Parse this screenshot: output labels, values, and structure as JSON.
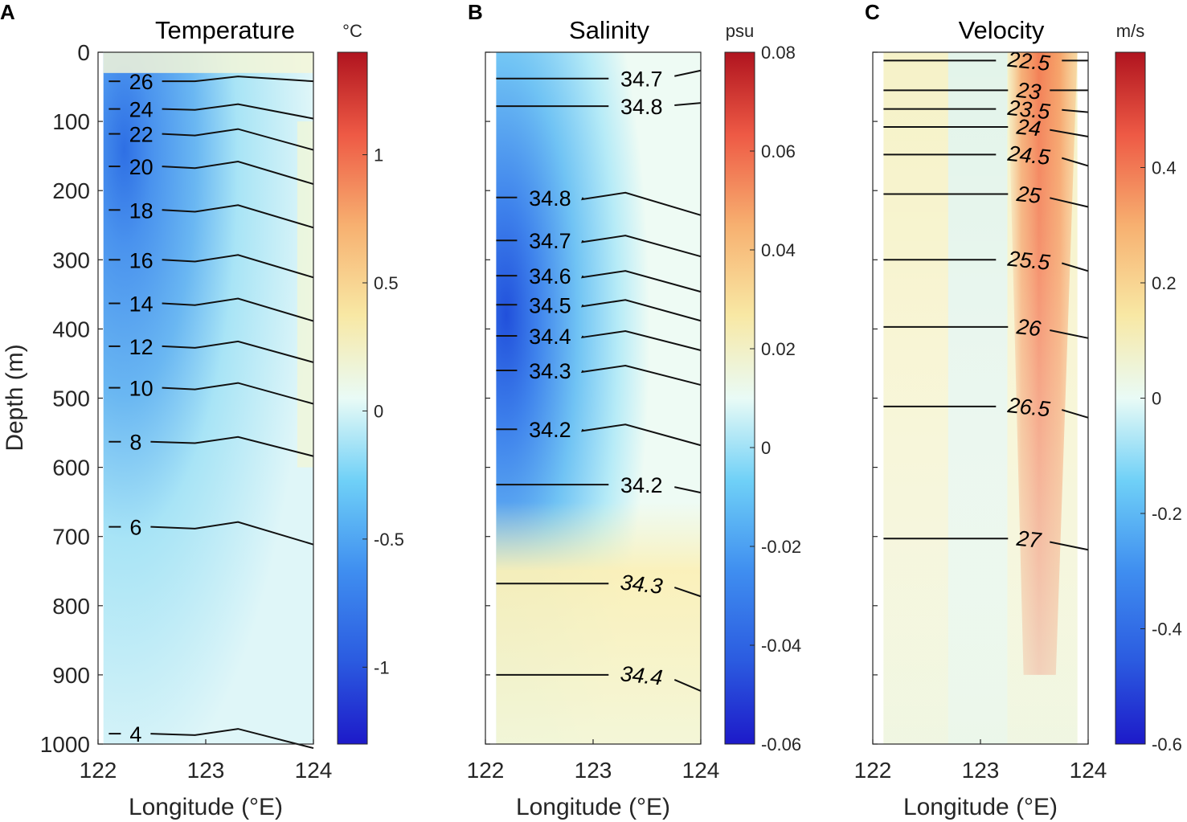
{
  "figure": {
    "ylabel": "Depth (m)",
    "xlabel": "Longitude (°E)",
    "x_ticks": [
      122,
      123,
      124
    ],
    "y_ticks": [
      0,
      100,
      200,
      300,
      400,
      500,
      600,
      700,
      800,
      900,
      1000
    ],
    "xlim": [
      122,
      124
    ],
    "ylim": [
      0,
      1000
    ]
  },
  "chart_data": [
    {
      "type": "heatmap",
      "panel": "A",
      "title": "Temperature",
      "colorbar_unit": "°C",
      "colorbar_range": [
        -1.3,
        1.4
      ],
      "colorbar_ticks": [
        1,
        0.5,
        0,
        -0.5,
        -1
      ],
      "colorbar_tick_labels": [
        "1",
        "0.5",
        "0",
        "-0.5",
        "-1"
      ],
      "anomaly_field": {
        "description": "negative anomaly core centered near 122.0-123.4°E, 100-500 m",
        "core_longitude": 122.3,
        "core_depth": 160,
        "min_value": -1.1,
        "x_extent": [
          122.05,
          124.0
        ]
      },
      "contours": [
        {
          "label": "26",
          "depth": 42,
          "tilt": 0,
          "label_x": 122.4,
          "italic": false
        },
        {
          "label": "24",
          "depth": 82,
          "tilt": 12,
          "label_x": 122.4,
          "italic": false
        },
        {
          "label": "22",
          "depth": 118,
          "tilt": 20,
          "label_x": 122.4,
          "italic": false
        },
        {
          "label": "20",
          "depth": 165,
          "tilt": 22,
          "label_x": 122.4,
          "italic": false
        },
        {
          "label": "18",
          "depth": 228,
          "tilt": 22,
          "label_x": 122.4,
          "italic": false
        },
        {
          "label": "16",
          "depth": 300,
          "tilt": 22,
          "label_x": 122.4,
          "italic": false
        },
        {
          "label": "14",
          "depth": 363,
          "tilt": 22,
          "label_x": 122.4,
          "italic": false
        },
        {
          "label": "12",
          "depth": 425,
          "tilt": 20,
          "label_x": 122.4,
          "italic": false
        },
        {
          "label": "10",
          "depth": 485,
          "tilt": 20,
          "label_x": 122.4,
          "italic": false
        },
        {
          "label": "8",
          "depth": 563,
          "tilt": 18,
          "label_x": 122.35,
          "italic": false
        },
        {
          "label": "6",
          "depth": 686,
          "tilt": 22,
          "label_x": 122.35,
          "italic": false
        },
        {
          "label": "4",
          "depth": 985,
          "tilt": 18,
          "label_x": 122.35,
          "italic": false
        }
      ]
    },
    {
      "type": "heatmap",
      "panel": "B",
      "title": "Salinity",
      "colorbar_unit": "psu",
      "colorbar_range": [
        -0.06,
        0.08
      ],
      "colorbar_ticks": [
        0.08,
        0.06,
        0.04,
        0.02,
        0,
        -0.02,
        -0.04,
        -0.06
      ],
      "colorbar_tick_labels": [
        "0.08",
        "0.06",
        "0.04",
        "0.02",
        "0",
        "-0.02",
        "-0.04",
        "-0.06"
      ],
      "anomaly_field": {
        "description": "negative anomaly core near 122.1-123.6°E, 200-550 m; weak positive below 650 m",
        "core_longitude": 122.2,
        "core_depth": 380,
        "min_value": -0.05,
        "x_extent": [
          122.1,
          124.0
        ]
      },
      "contours": [
        {
          "label": "34.7",
          "depth": 38,
          "tilt": -10,
          "label_x": 123.45,
          "italic": false
        },
        {
          "label": "34.8",
          "depth": 78,
          "tilt": -4,
          "label_x": 123.45,
          "italic": false
        },
        {
          "label": "34.8",
          "depth": 210,
          "tilt": 22,
          "label_x": 122.6,
          "italic": false
        },
        {
          "label": "34.7",
          "depth": 272,
          "tilt": 20,
          "label_x": 122.6,
          "italic": false
        },
        {
          "label": "34.6",
          "depth": 323,
          "tilt": 20,
          "label_x": 122.6,
          "italic": false
        },
        {
          "label": "34.5",
          "depth": 365,
          "tilt": 20,
          "label_x": 122.6,
          "italic": false
        },
        {
          "label": "34.4",
          "depth": 410,
          "tilt": 18,
          "label_x": 122.6,
          "italic": false
        },
        {
          "label": "34.3",
          "depth": 460,
          "tilt": 18,
          "label_x": 122.6,
          "italic": false
        },
        {
          "label": "34.2",
          "depth": 545,
          "tilt": 20,
          "label_x": 122.6,
          "italic": false
        },
        {
          "label": "34.2",
          "depth": 625,
          "tilt": 10,
          "label_x": 123.45,
          "italic": false
        },
        {
          "label": "34.3",
          "depth": 768,
          "tilt": 16,
          "label_x": 123.45,
          "italic": true
        },
        {
          "label": "34.4",
          "depth": 900,
          "tilt": 20,
          "label_x": 123.45,
          "italic": true
        }
      ]
    },
    {
      "type": "heatmap",
      "panel": "C",
      "title": "Velocity",
      "colorbar_unit": "m/s",
      "colorbar_range": [
        -0.6,
        0.6
      ],
      "colorbar_ticks": [
        0.4,
        0.2,
        0,
        -0.2,
        -0.4,
        -0.6
      ],
      "colorbar_tick_labels": [
        "0.4",
        "0.2",
        "0",
        "-0.2",
        "-0.4",
        "-0.6"
      ],
      "anomaly_field": {
        "description": "positive core centered near 123.5-123.8°E at surface, tapering with depth",
        "core_longitude": 123.6,
        "core_depth": 50,
        "max_value": 0.35,
        "x_extent": [
          122.1,
          123.9
        ]
      },
      "contours": [
        {
          "label": "22.5",
          "depth": 12,
          "tilt": 0,
          "label_x": 123.45,
          "italic": true
        },
        {
          "label": "23",
          "depth": 55,
          "tilt": 0,
          "label_x": 123.45,
          "italic": true
        },
        {
          "label": "23.5",
          "depth": 82,
          "tilt": 4,
          "label_x": 123.45,
          "italic": true
        },
        {
          "label": "24",
          "depth": 108,
          "tilt": 12,
          "label_x": 123.45,
          "italic": true
        },
        {
          "label": "24.5",
          "depth": 148,
          "tilt": 14,
          "label_x": 123.45,
          "italic": true
        },
        {
          "label": "25",
          "depth": 205,
          "tilt": 16,
          "label_x": 123.45,
          "italic": true
        },
        {
          "label": "25.5",
          "depth": 300,
          "tilt": 14,
          "label_x": 123.45,
          "italic": true
        },
        {
          "label": "26",
          "depth": 397,
          "tilt": 14,
          "label_x": 123.45,
          "italic": true
        },
        {
          "label": "26.5",
          "depth": 512,
          "tilt": 14,
          "label_x": 123.45,
          "italic": true
        },
        {
          "label": "27",
          "depth": 703,
          "tilt": 14,
          "label_x": 123.45,
          "italic": true
        }
      ]
    }
  ]
}
